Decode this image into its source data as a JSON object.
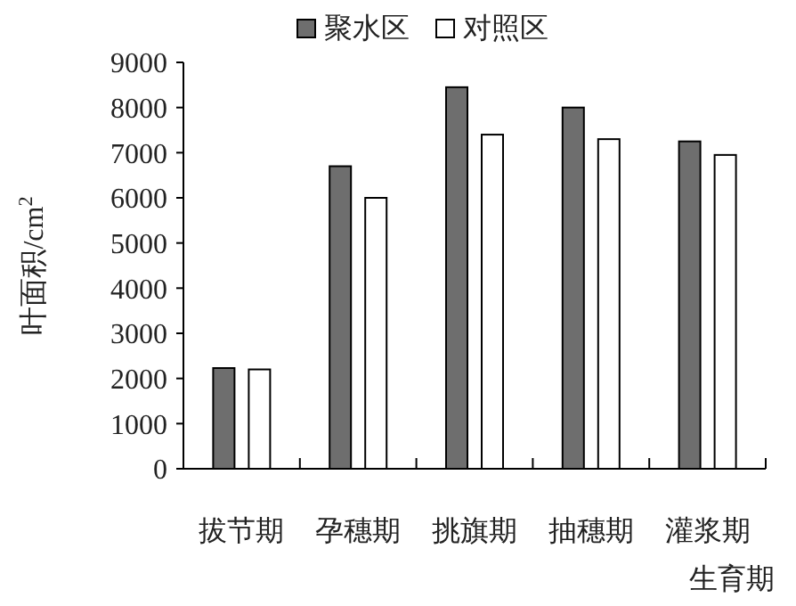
{
  "chart_data": {
    "type": "bar",
    "xlabel": "生育期",
    "ylabel": "叶面积/cm$^{2}$",
    "categories": [
      "拔节期",
      "孕穗期",
      "挑旗期",
      "抽穗期",
      "灌浆期"
    ],
    "series": [
      {
        "name": "聚水区",
        "color": "#6e6e6e",
        "values": [
          2230,
          6700,
          8450,
          8000,
          7250
        ]
      },
      {
        "name": "对照区",
        "color": "#ffffff",
        "values": [
          2200,
          6000,
          7400,
          7300,
          6950
        ]
      }
    ],
    "ylim": [
      0,
      9000
    ],
    "yticks": [
      0,
      1000,
      2000,
      3000,
      4000,
      5000,
      6000,
      7000,
      8000,
      9000
    ],
    "grid": false,
    "legend": "top"
  }
}
